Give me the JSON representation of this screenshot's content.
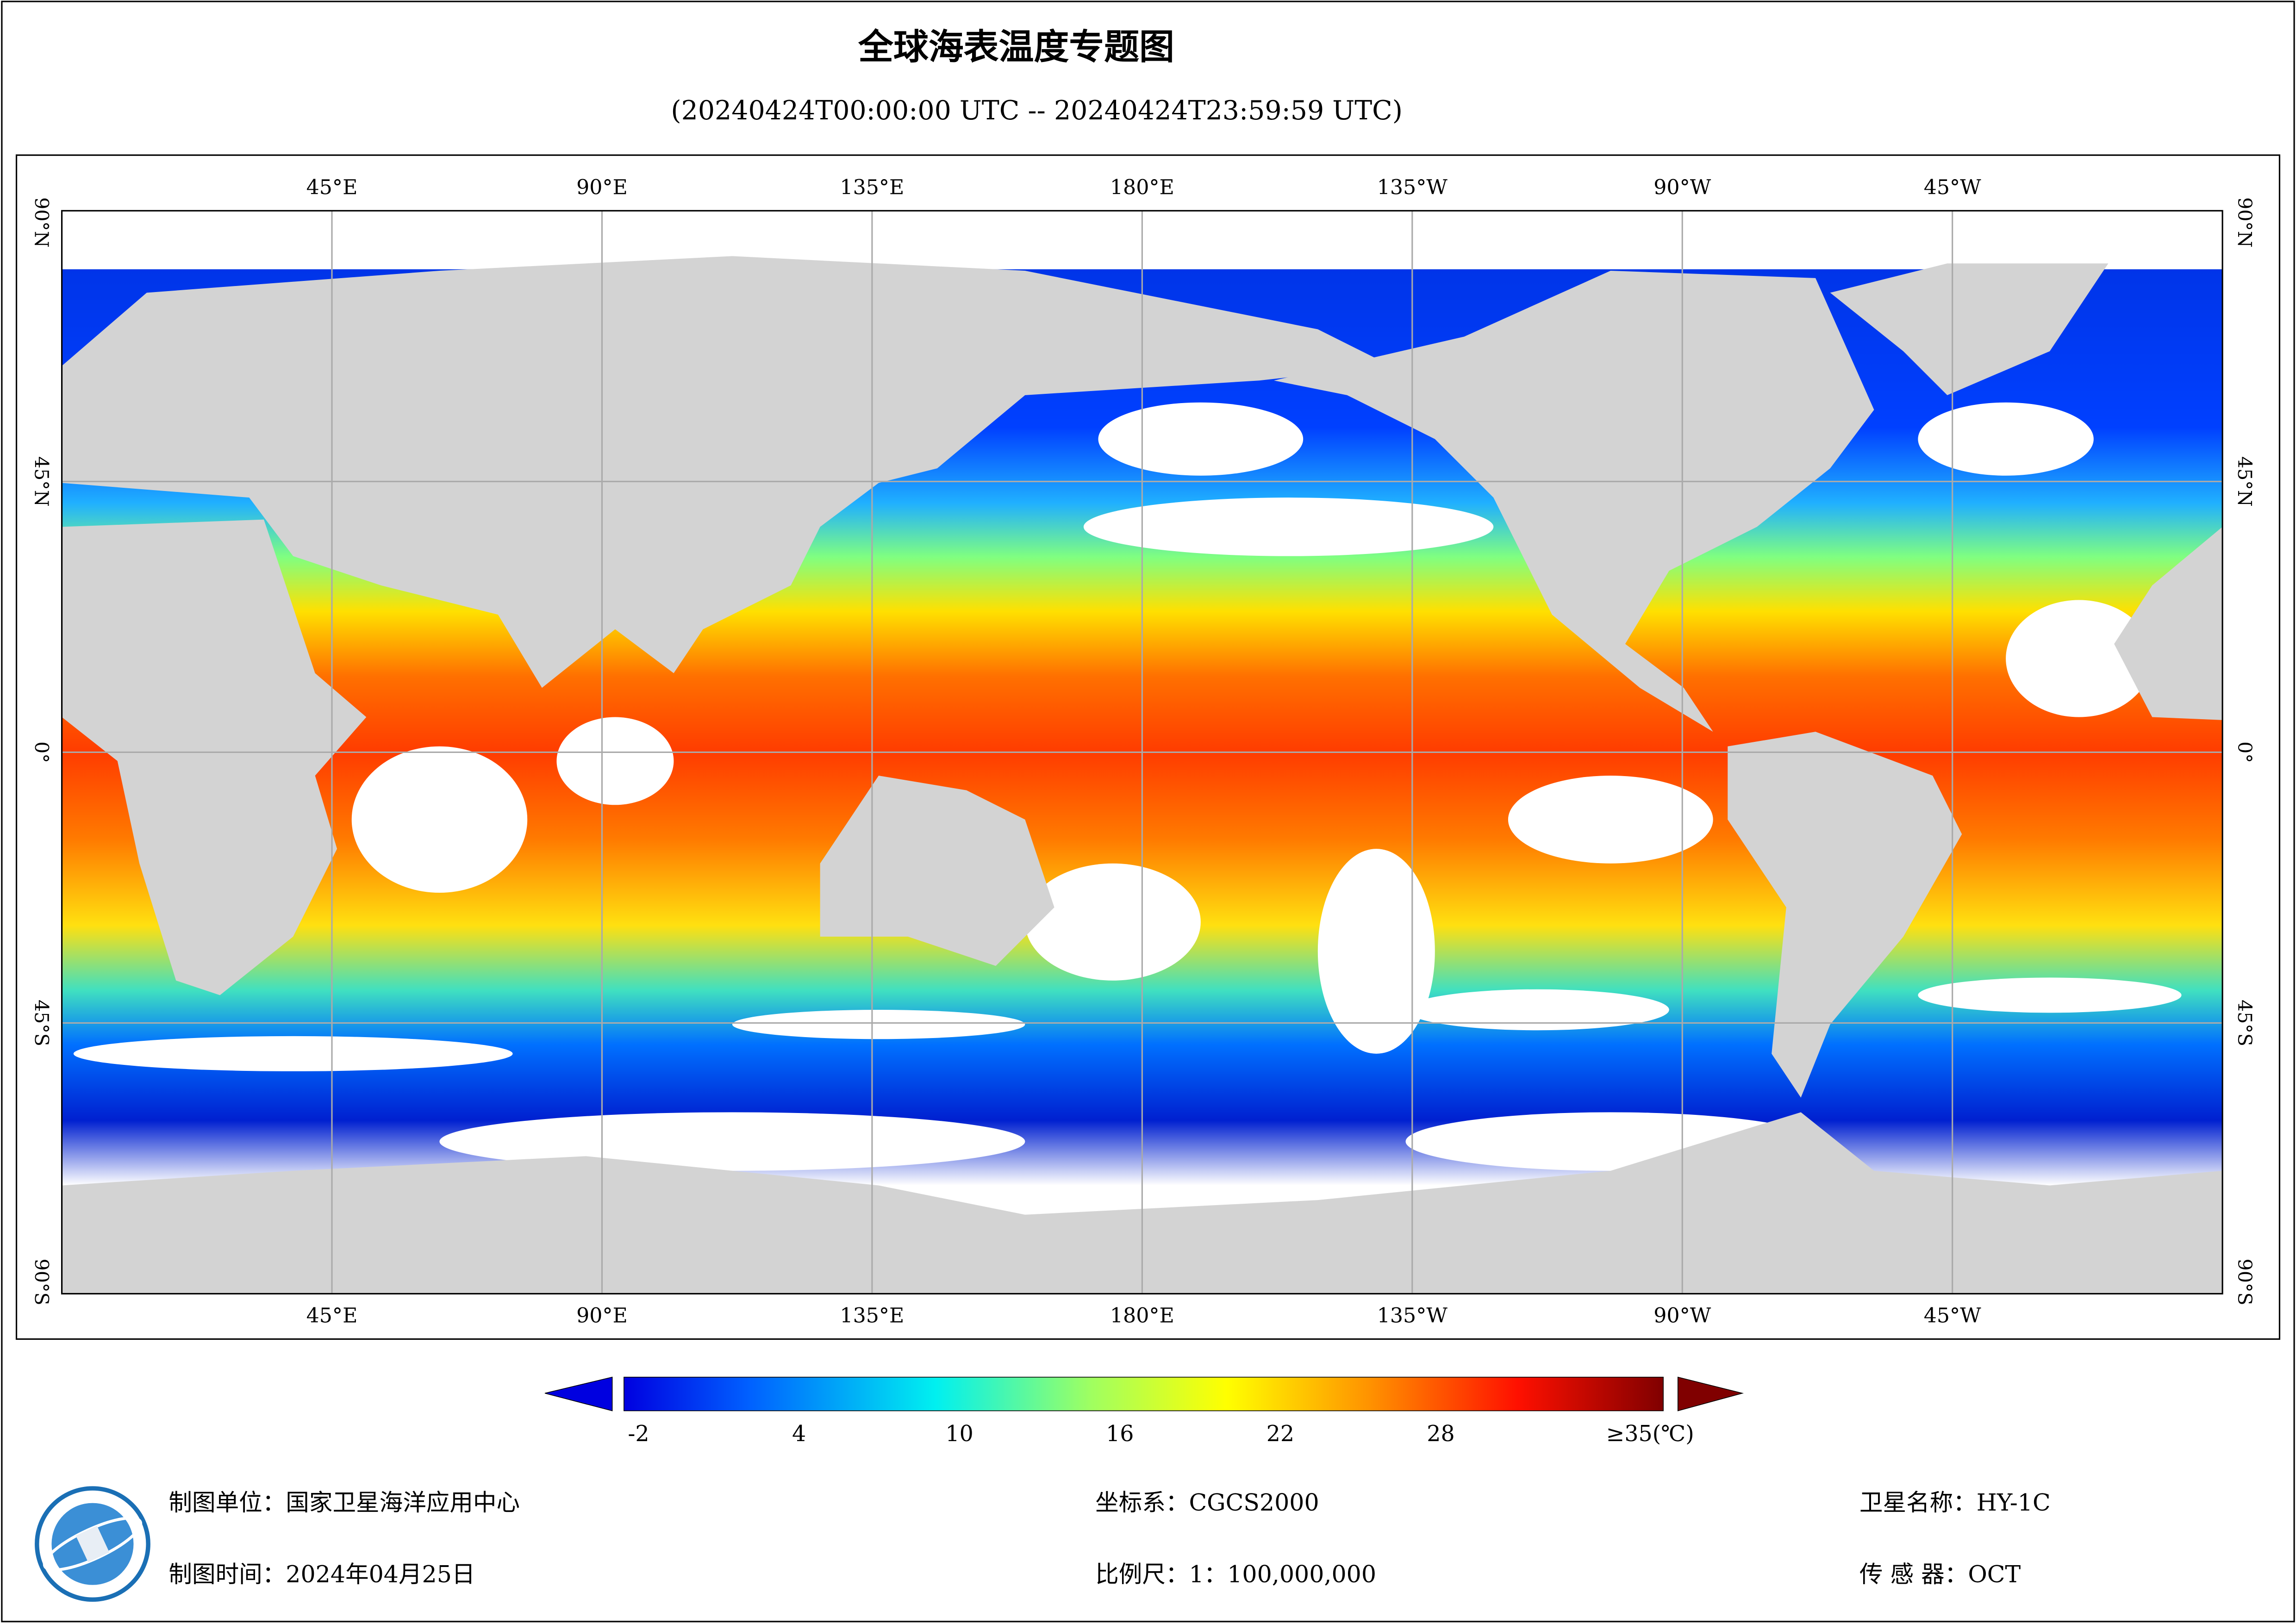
{
  "title": "全球海表温度专题图",
  "subtitle": "(20240424T00:00:00 UTC -- 20240424T23:59:59 UTC)",
  "lon_labels": [
    "45°E",
    "90°E",
    "135°E",
    "180°E",
    "135°W",
    "90°W",
    "45°W"
  ],
  "lat_labels": [
    "90°N",
    "45°N",
    "0°",
    "45°S",
    "90°S"
  ],
  "colorbar": {
    "ticks": [
      -2,
      4,
      10,
      16,
      22,
      28
    ],
    "last_label": "≥35(℃)"
  },
  "footer": {
    "unit": "制图单位：国家卫星海洋应用中心",
    "time": "制图时间：2024年04月25日",
    "crs": "坐标系：CGCS2000",
    "scale": "比例尺：1：100,000,000",
    "satellite": "卫星名称：HY-1C",
    "sensor": "传 感 器：OCT"
  }
}
